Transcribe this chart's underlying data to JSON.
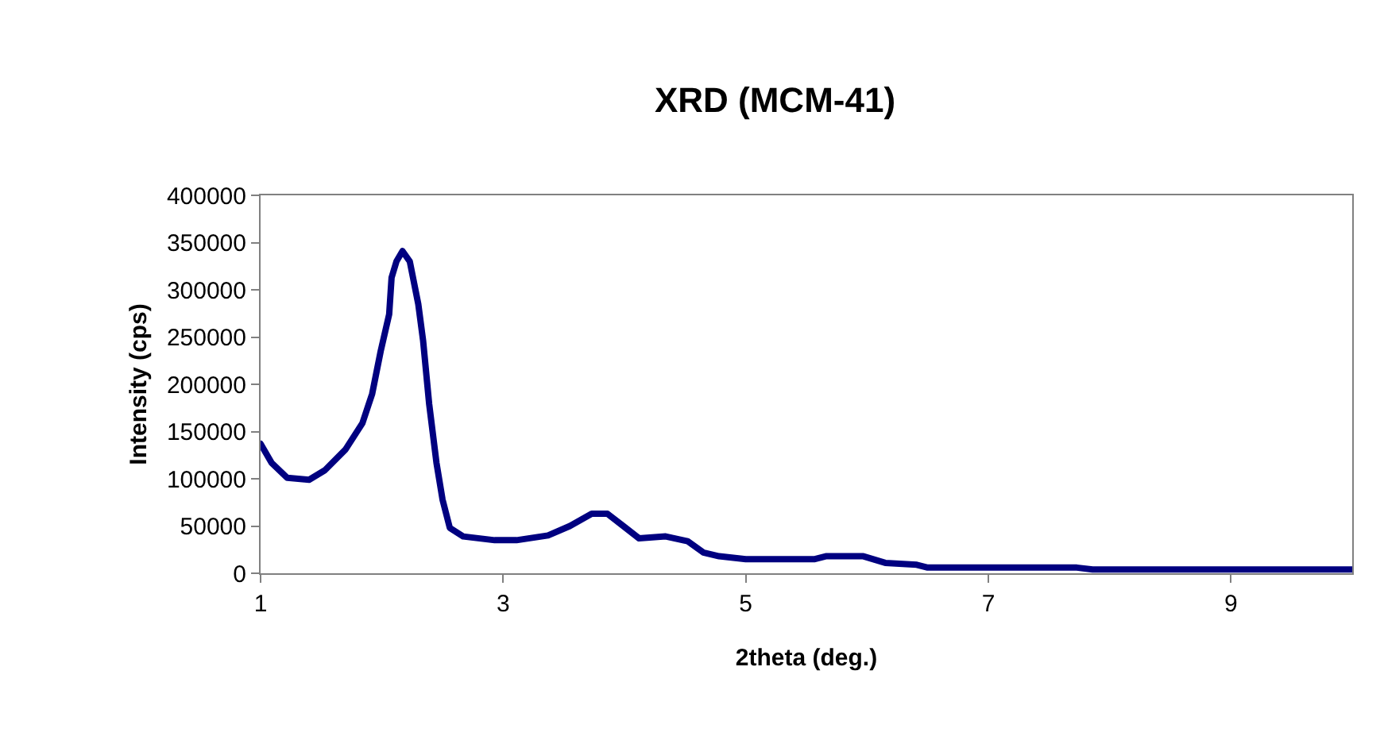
{
  "chart_data": {
    "type": "line",
    "title": "XRD (MCM-41)",
    "xlabel": "2theta (deg.)",
    "ylabel": "Intensity (cps)",
    "xlim": [
      1,
      10
    ],
    "xticks": [
      1,
      3,
      5,
      7,
      9
    ],
    "ylim": [
      0,
      400000
    ],
    "yticks": [
      0,
      50000,
      100000,
      150000,
      200000,
      250000,
      300000,
      350000,
      400000
    ],
    "grid": false,
    "marker": "none",
    "line_style": "solid",
    "series": [
      {
        "color": "#000080",
        "x": [
          1,
          1.09,
          1.22,
          1.4,
          1.53,
          1.7,
          1.84,
          1.92,
          1.99,
          2.06,
          2.08,
          2.12,
          2.17,
          2.23,
          2.3,
          2.34,
          2.39,
          2.45,
          2.5,
          2.56,
          2.67,
          2.93,
          3.11,
          3.37,
          3.55,
          3.73,
          3.86,
          3.99,
          4.12,
          4.34,
          4.52,
          4.65,
          4.78,
          5,
          5.57,
          5.66,
          5.97,
          6.15,
          6.41,
          6.5,
          7.73,
          7.86,
          10
        ],
        "values": [
          137000,
          117000,
          101000,
          99000,
          109000,
          131000,
          159000,
          190000,
          235000,
          274000,
          313000,
          330000,
          341000,
          330000,
          285000,
          246000,
          179000,
          117000,
          78000,
          48000,
          39000,
          35000,
          35000,
          40000,
          50000,
          63000,
          63000,
          50000,
          37000,
          39000,
          34000,
          22000,
          18000,
          15000,
          15000,
          18000,
          18000,
          11000,
          9000,
          6000,
          6000,
          4000,
          4000
        ]
      }
    ]
  }
}
